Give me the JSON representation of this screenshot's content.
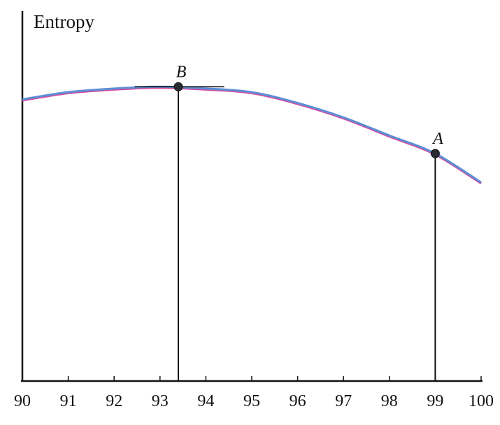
{
  "chart_data": {
    "type": "line",
    "ylabel": "Entropy",
    "xlabel": "",
    "xlim": [
      90,
      100
    ],
    "x_ticks": [
      "90",
      "91",
      "92",
      "93",
      "94",
      "95",
      "96",
      "97",
      "98",
      "99",
      "100"
    ],
    "y_ticks_shown": false,
    "grid": false,
    "series": [
      {
        "x": [
          90,
          91,
          92,
          93,
          94,
          95,
          96,
          97,
          98,
          99,
          100
        ],
        "y": [
          0.78,
          0.8,
          0.81,
          0.815,
          0.81,
          0.8,
          0.77,
          0.73,
          0.68,
          0.63,
          0.55
        ],
        "colors": [
          "#5b8fd6",
          "#d64a9c"
        ]
      }
    ],
    "points": [
      {
        "label": "B",
        "x": 93.4,
        "y": 0.815
      },
      {
        "label": "A",
        "x": 99.0,
        "y": 0.63
      }
    ],
    "tangent_at": "B"
  }
}
